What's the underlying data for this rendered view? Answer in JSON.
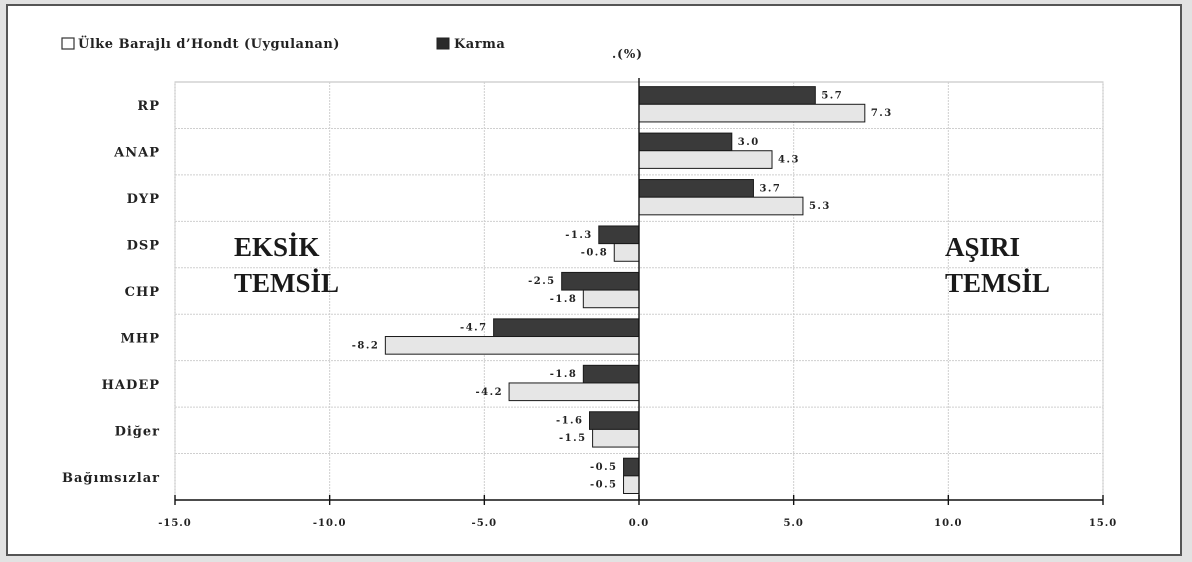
{
  "chart_data": {
    "type": "bar",
    "orientation": "horizontal",
    "unit_label": ".(%)",
    "categories": [
      "RP",
      "ANAP",
      "DYP",
      "DSP",
      "CHP",
      "MHP",
      "HADEP",
      "Diğer",
      "Bağımsızlar"
    ],
    "series": [
      {
        "name": "Karma",
        "color": "#3a3a3a",
        "values": [
          5.7,
          3.0,
          3.7,
          -1.3,
          -2.5,
          -4.7,
          -1.8,
          -1.6,
          -0.5
        ]
      },
      {
        "name": "Ülke Barajlı d’Hondt (Uygulanan)",
        "color": "#e6e6e6",
        "values": [
          7.3,
          4.3,
          5.3,
          -0.8,
          -1.8,
          -8.2,
          -4.2,
          -1.5,
          -0.5
        ]
      }
    ],
    "value_labels": {
      "Karma": [
        "5.7",
        "3.0",
        "3.7",
        "-1.3",
        "-2.5",
        "-4.7",
        "-1.8",
        "-1.6",
        "-0.5"
      ],
      "Ülke Barajlı d’Hondt (Uygulanan)": [
        "7.3",
        "4.3",
        "5.3",
        "-0.8",
        "-1.8",
        "-8.2",
        "-4.2",
        "-1.5",
        "-0.5"
      ]
    },
    "legend": {
      "placement": "top-left",
      "entries": [
        {
          "label": "Ülke Barajlı d’Hondt (Uygulanan)",
          "color": "#e6e6e6"
        },
        {
          "label": "Karma",
          "color": "#3a3a3a"
        }
      ]
    },
    "xlim": [
      -15,
      15
    ],
    "xticks": [
      -15,
      -10,
      -5,
      0,
      5,
      10,
      15
    ],
    "xtick_labels": [
      "-15.0",
      "-10.0",
      "-5.0",
      "0.0",
      "5.0",
      "10.0",
      "15.0"
    ],
    "grid": true,
    "annotations": {
      "left": [
        "EKSİK",
        "TEMSİL"
      ],
      "right": [
        "AŞIRI",
        "TEMSİL"
      ]
    }
  }
}
